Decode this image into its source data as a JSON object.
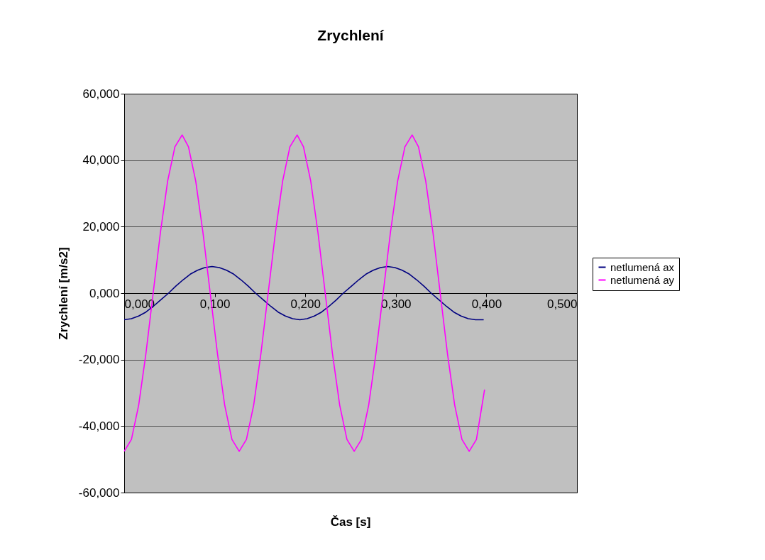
{
  "chart_data": {
    "type": "line",
    "title": "Zrychlení",
    "xlabel": "Čas [s]",
    "ylabel": "Zrychlení [m/s2]",
    "xlim": [
      0,
      0.5
    ],
    "ylim": [
      -60,
      60
    ],
    "xticks": [
      {
        "value": 0,
        "label": "0,000"
      },
      {
        "value": 0.1,
        "label": "0,100"
      },
      {
        "value": 0.2,
        "label": "0,200"
      },
      {
        "value": 0.3,
        "label": "0,300"
      },
      {
        "value": 0.4,
        "label": "0,400"
      },
      {
        "value": 0.5,
        "label": "0,500"
      }
    ],
    "yticks": [
      {
        "value": -60,
        "label": "-60,000"
      },
      {
        "value": -40,
        "label": "-40,000"
      },
      {
        "value": -20,
        "label": "-20,000"
      },
      {
        "value": 0,
        "label": "0,000"
      },
      {
        "value": 20,
        "label": "20,000"
      },
      {
        "value": 40,
        "label": "40,000"
      },
      {
        "value": 60,
        "label": "60,000"
      }
    ],
    "grid": "y",
    "legend": "right",
    "marker": "none",
    "line_style": "solid",
    "series": [
      {
        "name": "netlumená ax",
        "color": "#000080",
        "x": [
          0,
          0.008,
          0.016,
          0.024,
          0.032,
          0.04,
          0.049,
          0.057,
          0.065,
          0.073,
          0.081,
          0.089,
          0.097,
          0.105,
          0.113,
          0.121,
          0.129,
          0.137,
          0.145,
          0.154,
          0.162,
          0.17,
          0.178,
          0.186,
          0.194,
          0.202,
          0.21,
          0.218,
          0.226,
          0.234,
          0.242,
          0.251,
          0.259,
          0.267,
          0.275,
          0.283,
          0.291,
          0.299,
          0.307,
          0.315,
          0.323,
          0.331,
          0.339,
          0.348,
          0.356,
          0.364,
          0.372,
          0.38,
          0.388,
          0.397
        ],
        "values": [
          -8,
          -7.7,
          -6.9,
          -5.7,
          -4,
          -2.1,
          0,
          2.1,
          4,
          5.7,
          6.9,
          7.7,
          8,
          7.7,
          6.9,
          5.7,
          4,
          2.1,
          0,
          -2.1,
          -4,
          -5.7,
          -6.9,
          -7.7,
          -8,
          -7.7,
          -6.9,
          -5.7,
          -4,
          -2.1,
          0,
          2.1,
          4,
          5.7,
          6.9,
          7.7,
          8,
          7.7,
          6.9,
          5.7,
          4,
          2.1,
          0,
          -2.1,
          -4,
          -5.7,
          -6.9,
          -7.7,
          -8,
          -8
        ]
      },
      {
        "name": "netlumená ay",
        "color": "#ff00ff",
        "x": [
          0,
          0.008,
          0.016,
          0.024,
          0.032,
          0.04,
          0.048,
          0.056,
          0.064,
          0.071,
          0.079,
          0.087,
          0.095,
          0.103,
          0.111,
          0.119,
          0.127,
          0.135,
          0.143,
          0.151,
          0.159,
          0.167,
          0.175,
          0.183,
          0.191,
          0.198,
          0.206,
          0.214,
          0.222,
          0.23,
          0.238,
          0.246,
          0.254,
          0.262,
          0.27,
          0.278,
          0.286,
          0.294,
          0.302,
          0.31,
          0.318,
          0.325,
          0.333,
          0.341,
          0.349,
          0.357,
          0.365,
          0.373,
          0.381,
          0.389,
          0.398
        ],
        "values": [
          -47.6,
          -44.0,
          -33.7,
          -18.2,
          0,
          18.2,
          33.7,
          44.0,
          47.6,
          44.0,
          33.7,
          18.2,
          0,
          -18.2,
          -33.7,
          -44.0,
          -47.6,
          -44.0,
          -33.7,
          -18.2,
          0,
          18.2,
          33.7,
          44.0,
          47.6,
          44.0,
          33.7,
          18.2,
          0,
          -18.2,
          -33.7,
          -44.0,
          -47.6,
          -44.0,
          -33.7,
          -18.2,
          0,
          18.2,
          33.7,
          44.0,
          47.6,
          44.0,
          33.7,
          18.2,
          0,
          -18.2,
          -33.7,
          -44.0,
          -47.6,
          -44.0,
          -29
        ]
      }
    ]
  }
}
